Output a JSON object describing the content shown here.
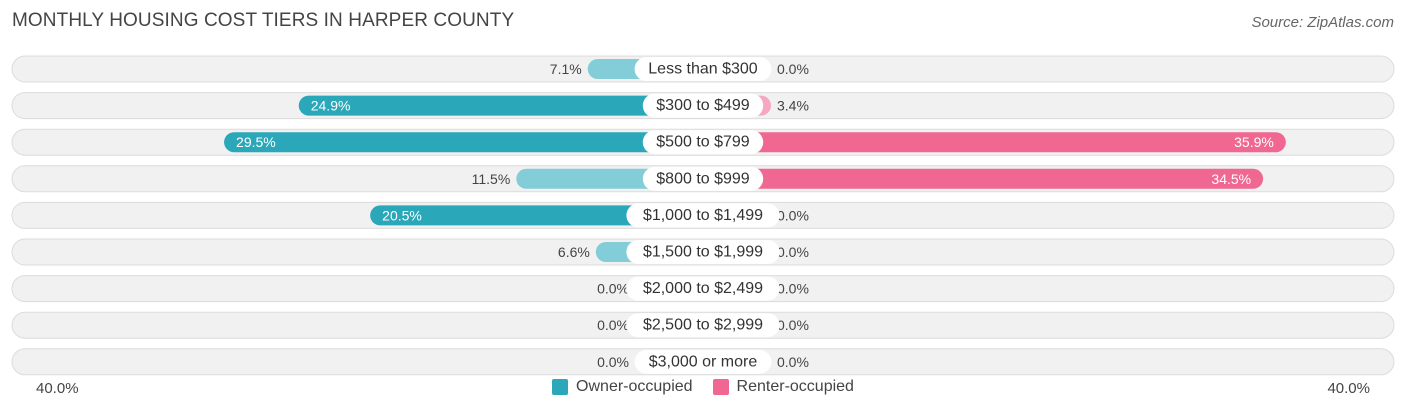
{
  "title": "MONTHLY HOUSING COST TIERS IN HARPER COUNTY",
  "source": "Source: ZipAtlas.com",
  "axis": {
    "left_label": "40.0%",
    "right_label": "40.0%"
  },
  "legend": [
    {
      "label": "Owner-occupied",
      "color": "#2aa7b8"
    },
    {
      "label": "Renter-occupied",
      "color": "#f06891"
    }
  ],
  "chart_data": {
    "type": "bar",
    "orientation": "diverging-horizontal",
    "title": "MONTHLY HOUSING COST TIERS IN HARPER COUNTY",
    "xlim": [
      -40,
      40
    ],
    "categories": [
      "Less than $300",
      "$300 to $499",
      "$500 to $799",
      "$800 to $999",
      "$1,000 to $1,499",
      "$1,500 to $1,999",
      "$2,000 to $2,499",
      "$2,500 to $2,999",
      "$3,000 or more"
    ],
    "series": [
      {
        "name": "Owner-occupied",
        "color": "#2aa7b8",
        "light_color": "#82cdd7",
        "values": [
          7.1,
          24.9,
          29.5,
          11.5,
          20.5,
          6.6,
          0.0,
          0.0,
          0.0
        ],
        "labels": [
          "7.1%",
          "24.9%",
          "29.5%",
          "11.5%",
          "20.5%",
          "6.6%",
          "0.0%",
          "0.0%",
          "0.0%"
        ]
      },
      {
        "name": "Renter-occupied",
        "color": "#f06891",
        "light_color": "#f6a8c1",
        "values": [
          0.0,
          3.4,
          35.9,
          34.5,
          0.0,
          0.0,
          0.0,
          0.0,
          0.0
        ],
        "labels": [
          "0.0%",
          "3.4%",
          "35.9%",
          "34.5%",
          "0.0%",
          "0.0%",
          "0.0%",
          "0.0%",
          "0.0%"
        ]
      }
    ]
  }
}
